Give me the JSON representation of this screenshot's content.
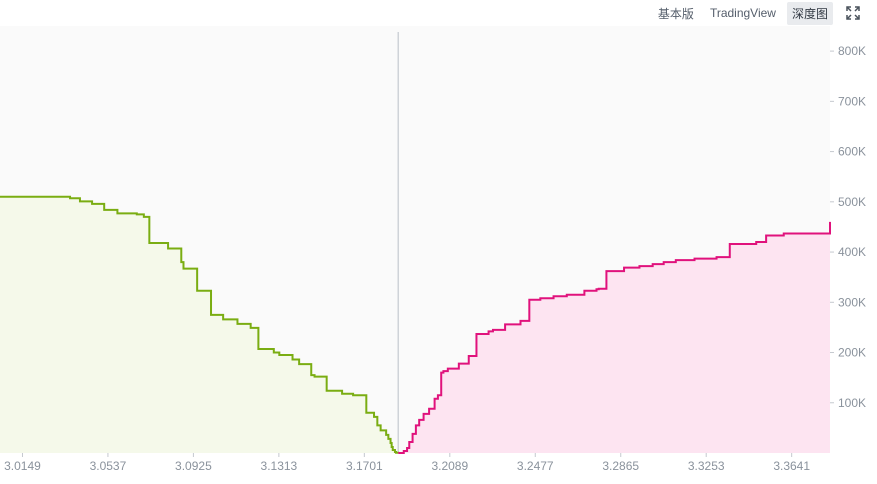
{
  "toolbar": {
    "basic_label": "基本版",
    "tradingview_label": "TradingView",
    "depth_label": "深度图",
    "fullscreen_icon": "fullscreen-icon"
  },
  "chart_data": {
    "type": "area",
    "x_ticks": [
      "3.0149",
      "3.0537",
      "3.0925",
      "3.1313",
      "3.1701",
      "3.2089",
      "3.2477",
      "3.2865",
      "3.3253",
      "3.3641"
    ],
    "y_ticks": [
      "100K",
      "200K",
      "300K",
      "400K",
      "500K",
      "600K",
      "700K",
      "800K"
    ],
    "xlim": [
      3.0047,
      3.3815
    ],
    "ylim": [
      0,
      850000
    ],
    "mid_price": 3.1855,
    "grid": false,
    "colors": {
      "bids_line": "#7aad12",
      "bids_fill": "#f5f9ea",
      "asks_line": "#e0127c",
      "asks_fill": "#fde4f1",
      "mid_line": "#cfd3d8",
      "axis_text": "#8a929c",
      "plot_bg": "#fafafa"
    },
    "series": [
      {
        "x": [
          3.0047,
          3.02,
          3.0295,
          3.0365,
          3.041,
          3.0465,
          3.052,
          3.058,
          3.0585,
          3.0668,
          3.07,
          3.0725,
          3.073,
          3.081,
          3.087,
          3.088,
          3.0942,
          3.1005,
          3.106,
          3.1125,
          3.1185,
          3.122,
          3.129,
          3.1315,
          3.1375,
          3.1405,
          3.146,
          3.1475,
          3.153,
          3.16,
          3.165,
          3.17,
          3.171,
          3.1745,
          3.176,
          3.1775,
          3.18,
          3.181,
          3.182,
          3.1825,
          3.183,
          3.184,
          3.1845,
          3.1855
        ],
        "y": [
          510000,
          510000,
          510000,
          507000,
          501000,
          496000,
          484000,
          477000,
          477000,
          475000,
          470000,
          418000,
          418000,
          407000,
          380000,
          367000,
          323000,
          275000,
          266000,
          257000,
          249000,
          207000,
          200000,
          195000,
          186000,
          177000,
          155000,
          152000,
          124000,
          118000,
          115000,
          115000,
          80000,
          72000,
          55000,
          45000,
          36000,
          28000,
          20000,
          12000,
          6000,
          2000,
          500,
          0
        ]
      },
      {
        "x": [
          3.1855,
          3.188,
          3.1895,
          3.1905,
          3.192,
          3.1935,
          3.195,
          3.197,
          3.1995,
          3.202,
          3.2035,
          3.205,
          3.206,
          3.208,
          3.213,
          3.2175,
          3.221,
          3.2265,
          3.2285,
          3.234,
          3.241,
          3.245,
          3.25,
          3.256,
          3.262,
          3.27,
          3.2755,
          3.2765,
          3.28,
          3.288,
          3.295,
          3.301,
          3.306,
          3.3115,
          3.32,
          3.33,
          3.336,
          3.348,
          3.3525,
          3.3605,
          3.3815
        ],
        "y": [
          0,
          4000,
          10000,
          22000,
          38000,
          55000,
          66000,
          78000,
          88000,
          108000,
          115000,
          160000,
          163000,
          168000,
          178000,
          193000,
          237000,
          242000,
          245000,
          256000,
          263000,
          305000,
          308000,
          312000,
          315000,
          323000,
          326000,
          327000,
          362000,
          369000,
          372000,
          376000,
          380000,
          384000,
          387000,
          390000,
          416000,
          420000,
          433000,
          437000,
          460000
        ]
      }
    ]
  }
}
